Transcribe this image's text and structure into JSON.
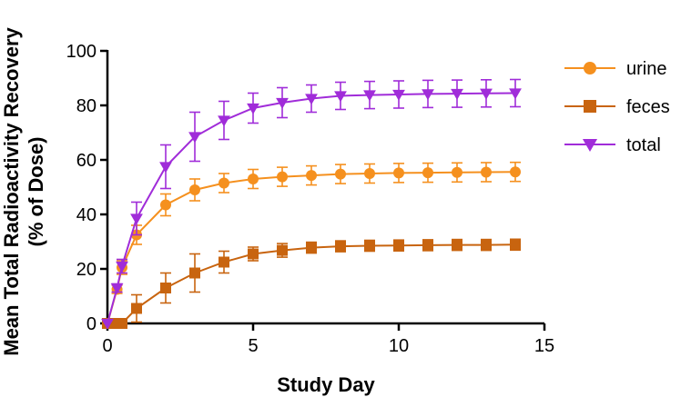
{
  "chart_data": {
    "type": "line",
    "xlabel": "Study Day",
    "ylabel_line1": "Mean Total Radioactivity Recovery",
    "ylabel_line2": "(% of Dose)",
    "xlim": [
      0,
      15
    ],
    "ylim": [
      0,
      100
    ],
    "xticks": [
      0,
      5,
      10,
      15
    ],
    "yticks": [
      0,
      20,
      40,
      60,
      80,
      100
    ],
    "grid": false,
    "legend_position": "top-right",
    "x": [
      0,
      0.33,
      0.5,
      1,
      2,
      3,
      4,
      5,
      6,
      7,
      8,
      9,
      10,
      11,
      12,
      13,
      14
    ],
    "series": [
      {
        "name": "urine",
        "color": "#F5901E",
        "marker": "circle",
        "values": [
          0,
          12.5,
          20.5,
          32.5,
          43.5,
          49,
          51.5,
          53,
          53.8,
          54.3,
          54.8,
          55,
          55.2,
          55.3,
          55.4,
          55.5,
          55.6
        ],
        "errors": [
          0,
          1.5,
          2.5,
          3.5,
          4,
          4,
          3.5,
          3.5,
          3.5,
          3.5,
          3.5,
          3.5,
          3.5,
          3.5,
          3.5,
          3.5,
          3.5
        ]
      },
      {
        "name": "feces",
        "color": "#C8640F",
        "marker": "square",
        "values": [
          0,
          0,
          0,
          5.5,
          13,
          18.5,
          22.5,
          25.5,
          26.8,
          27.8,
          28.3,
          28.5,
          28.6,
          28.7,
          28.8,
          28.8,
          28.9
        ],
        "errors": [
          0,
          0,
          0,
          5,
          5.5,
          7,
          4,
          2.5,
          2.5,
          2,
          2,
          2,
          2,
          2,
          2,
          2,
          2
        ]
      },
      {
        "name": "total",
        "color": "#A02CD9",
        "marker": "triangle-down",
        "values": [
          0,
          13,
          21,
          38.5,
          57.5,
          68.5,
          74.5,
          79,
          81,
          82.5,
          83.5,
          83.8,
          84,
          84.2,
          84.3,
          84.4,
          84.5
        ],
        "errors": [
          0,
          1.5,
          2.5,
          6,
          8,
          9,
          7,
          5.5,
          5.5,
          5,
          5,
          5,
          5,
          5,
          5,
          5,
          5
        ]
      }
    ]
  }
}
